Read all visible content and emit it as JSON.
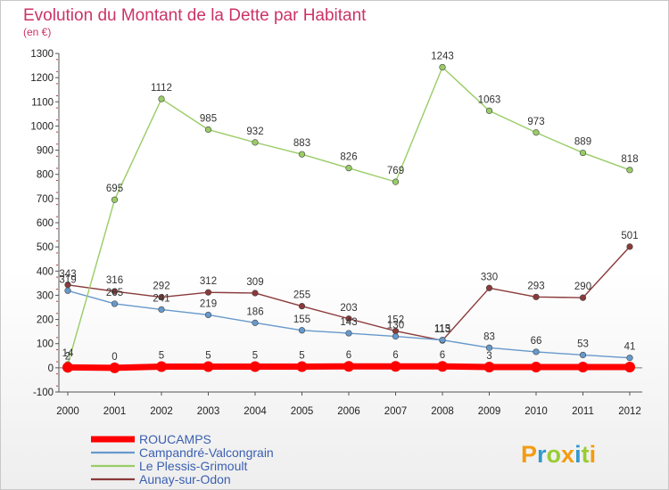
{
  "chart_data": {
    "type": "line",
    "title": "Evolution du Montant de la Dette par Habitant",
    "subtitle": "(en €)",
    "x": [
      "2000",
      "2001",
      "2002",
      "2003",
      "2004",
      "2005",
      "2006",
      "2007",
      "2008",
      "2009",
      "2010",
      "2011",
      "2012"
    ],
    "ylim": [
      -100,
      1300
    ],
    "yticks": [
      -100,
      0,
      100,
      200,
      300,
      400,
      500,
      600,
      700,
      800,
      900,
      1000,
      1100,
      1200,
      1300
    ],
    "grid": false,
    "legend_position": "bottom-left",
    "series": [
      {
        "name": "ROUCAMPS",
        "color": "#ff0000",
        "values": [
          2,
          0,
          5,
          5,
          5,
          5,
          6,
          6,
          6,
          3,
          3,
          3,
          3
        ],
        "labels": [
          "2",
          "0",
          "5",
          "5",
          "5",
          "5",
          "6",
          "6",
          "6",
          "3",
          "",
          "",
          ""
        ]
      },
      {
        "name": "Campandré-Valcongrain",
        "color": "#6699cc",
        "values": [
          319,
          265,
          241,
          219,
          186,
          155,
          143,
          130,
          115,
          83,
          66,
          53,
          41
        ],
        "labels": [
          "319",
          "265",
          "241",
          "219",
          "186",
          "155",
          "143",
          "130",
          "115",
          "83",
          "66",
          "53",
          "41"
        ]
      },
      {
        "name": "Le Plessis-Grimoult",
        "color": "#99cc66",
        "values": [
          14,
          695,
          1112,
          985,
          932,
          883,
          826,
          769,
          1243,
          1063,
          973,
          889,
          818
        ],
        "labels": [
          "14",
          "695",
          "1112",
          "985",
          "932",
          "883",
          "826",
          "769",
          "1243",
          "1063",
          "973",
          "889",
          "818"
        ]
      },
      {
        "name": "Aunay-sur-Odon",
        "color": "#8b3a3a",
        "values": [
          343,
          316,
          292,
          312,
          309,
          255,
          203,
          152,
          113,
          330,
          293,
          290,
          501
        ],
        "labels": [
          "343",
          "316",
          "292",
          "312",
          "309",
          "255",
          "203",
          "152",
          "113",
          "330",
          "293",
          "290",
          "501"
        ]
      }
    ]
  },
  "brand": {
    "letters": [
      "P",
      "r",
      "o",
      "x",
      "i",
      "t",
      "i"
    ],
    "colors": [
      "#f39c12",
      "#3399cc",
      "#99cc33",
      "#f39c12",
      "#3399cc",
      "#99cc33",
      "#f39c12"
    ]
  }
}
